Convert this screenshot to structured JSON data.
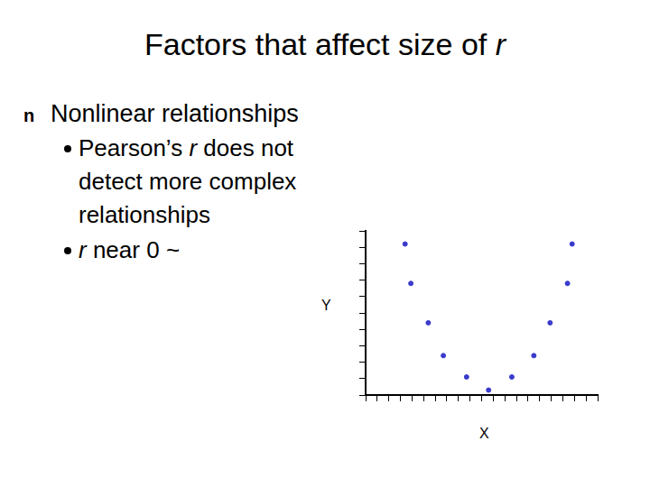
{
  "title": "Factors that affect size of r",
  "bullet_symbol": "n",
  "bullets": [
    {
      "text": "Nonlinear relationships",
      "sub_bullets": [
        "Pearson’s r does not detect more complex relationships",
        "r near 0 ~"
      ]
    }
  ],
  "chart_data": {
    "type": "scatter",
    "x_label": "X",
    "y_label": "Y",
    "x": [
      3.4,
      3.9,
      5.4,
      6.7,
      8.7,
      10.6,
      12.6,
      14.5,
      15.9,
      17.4,
      17.8
    ],
    "values": [
      9.2,
      6.8,
      4.4,
      2.4,
      1.1,
      0.3,
      1.1,
      2.4,
      4.4,
      6.8,
      9.2
    ],
    "color": "#3a3acc",
    "marker": "circle",
    "xlim": [
      0,
      20
    ],
    "xticks": [
      0,
      1,
      2,
      3,
      4,
      5,
      6,
      7,
      8,
      9,
      10,
      11,
      12,
      13,
      14,
      15,
      16,
      17,
      18,
      19,
      20
    ],
    "ylim": [
      0,
      10
    ],
    "yticks": [
      0,
      1,
      2,
      3,
      4,
      5,
      6,
      7,
      8,
      9,
      10
    ],
    "grid": false,
    "tick_labels": false
  }
}
